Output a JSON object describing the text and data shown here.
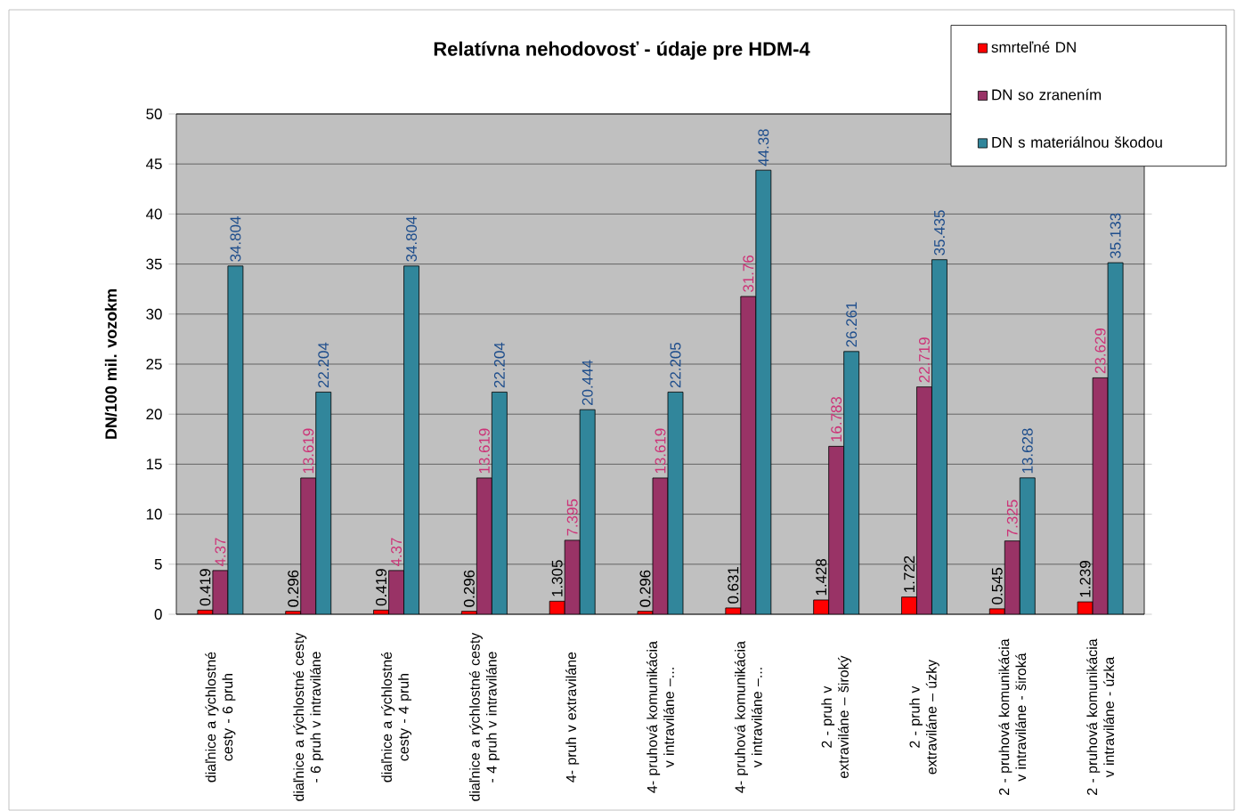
{
  "chart_data": {
    "type": "bar",
    "title": "Relatívna nehodovosť -  údaje pre HDM-4",
    "ylabel": "DN/100 mil. vozokm",
    "categories": [
      "diaľnice a rýchlostné cesty - 6 pruh",
      "diaľnice a rýchlostné cesty - 6 pruh v intraviláne",
      "diaľnice a rýchlostné cesty - 4 pruh",
      "diaľnice a rýchlostné cesty - 4 pruh v intraviláne",
      "4- pruh v extraviláne",
      "4- pruhová komunikácia v intraviláne –...",
      "4- pruhová komunikácia v intraviláne –...",
      "2 - pruh v extraviláne – široký",
      "2 - pruh v extraviláne – úzky",
      "2 - pruhová komunikácia v intraviláne - široká",
      "2 - pruhová komunikácia v intraviláne - úzka"
    ],
    "series": [
      {
        "name": "smrteľné DN",
        "color": "#ff0000",
        "values": [
          0.419,
          0.296,
          0.419,
          0.296,
          1.305,
          0.296,
          0.631,
          1.428,
          1.722,
          0.545,
          1.239
        ]
      },
      {
        "name": "DN so zranením",
        "color": "#993366",
        "values": [
          4.37,
          13.619,
          4.37,
          13.619,
          7.395,
          13.619,
          31.76,
          16.783,
          22.719,
          7.325,
          23.629
        ]
      },
      {
        "name": "DN s materiálnou  škodou",
        "color": "#31869b",
        "values": [
          34.804,
          22.204,
          34.804,
          22.204,
          20.444,
          22.205,
          44.38,
          26.261,
          35.435,
          13.628,
          35.133
        ]
      }
    ],
    "ylim": [
      0,
      50
    ],
    "yticks": [
      0,
      5,
      10,
      15,
      20,
      25,
      30,
      35,
      40,
      45,
      50
    ],
    "grid": "y",
    "legend": "top right",
    "data_labels": true
  }
}
